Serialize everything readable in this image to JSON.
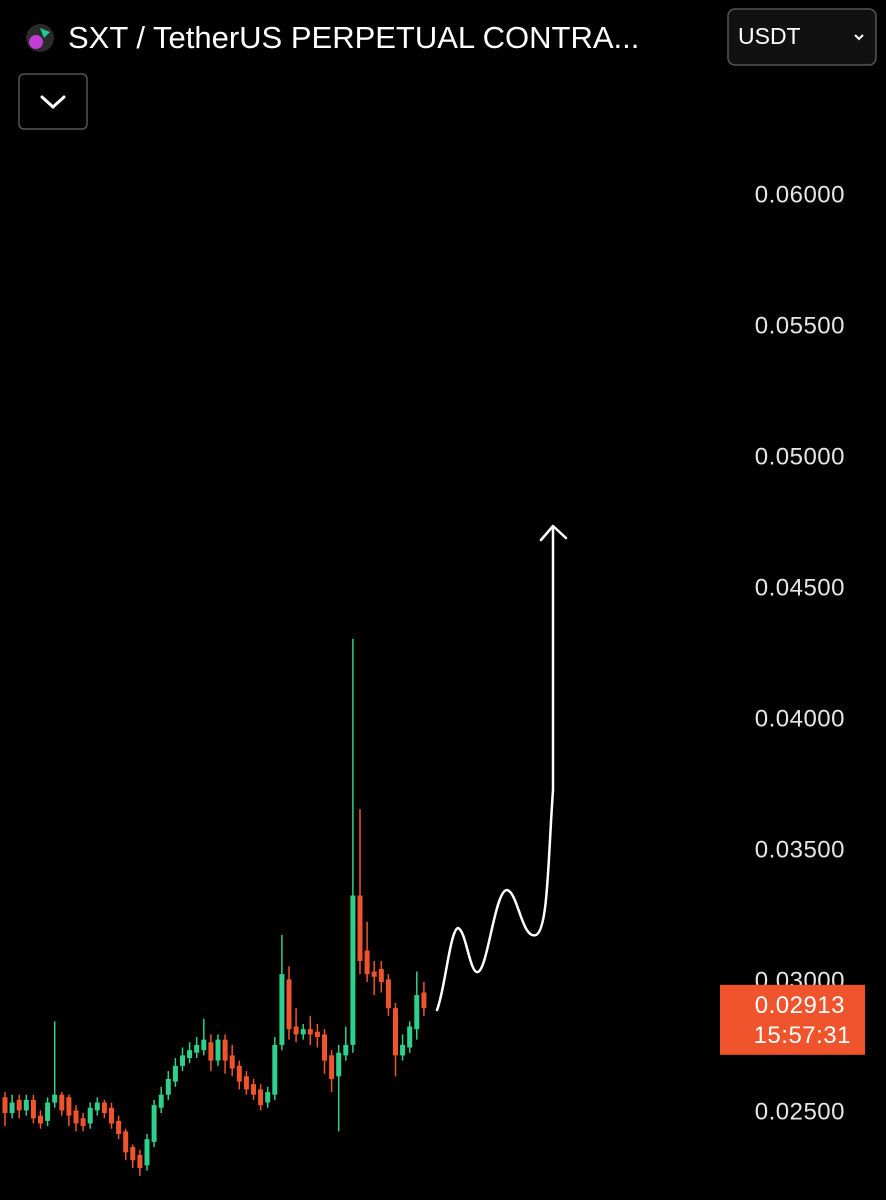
{
  "chart_data": {
    "type": "candlestick",
    "title": "SXT / TetherUS PERPETUAL CONTRA...",
    "currency": "USDT",
    "up_color": "#2ed08b",
    "down_color": "#f0542d",
    "ylim": [
      0.02168,
      0.06748
    ],
    "yticks": [
      {
        "value": 0.025,
        "label": "0.02500"
      },
      {
        "value": 0.03,
        "label": "0.03000"
      },
      {
        "value": 0.035,
        "label": "0.03500"
      },
      {
        "value": 0.04,
        "label": "0.04000"
      },
      {
        "value": 0.045,
        "label": "0.04500"
      },
      {
        "value": 0.05,
        "label": "0.05000"
      },
      {
        "value": 0.055,
        "label": "0.05500"
      },
      {
        "value": 0.06,
        "label": "0.06000"
      }
    ],
    "last_price": 0.02913,
    "countdown": "15:57:31",
    "open": [
      0.0256,
      0.025,
      0.0255,
      0.0251,
      0.0255,
      0.0249,
      0.0247,
      0.0254,
      0.0257,
      0.0256,
      0.0251,
      0.0248,
      0.0246,
      0.0251,
      0.0254,
      0.0252,
      0.0247,
      0.0243,
      0.0237,
      0.0234,
      0.023,
      0.0239,
      0.0252,
      0.0257,
      0.0262,
      0.0268,
      0.0271,
      0.0273,
      0.0274,
      0.0277,
      0.027,
      0.0278,
      0.0272,
      0.0268,
      0.0264,
      0.0261,
      0.0259,
      0.0254,
      0.0257,
      0.0276,
      0.0301,
      0.0283,
      0.028,
      0.0282,
      0.0281,
      0.028,
      0.0272,
      0.0264,
      0.0272,
      0.0276,
      0.0333,
      0.0312,
      0.0304,
      0.0305,
      0.0301,
      0.029,
      0.0272,
      0.0275,
      0.0282,
      0.0296
    ],
    "high": [
      0.0258,
      0.0257,
      0.0257,
      0.0257,
      0.0257,
      0.0251,
      0.0256,
      0.0285,
      0.0258,
      0.0257,
      0.0253,
      0.025,
      0.0254,
      0.0256,
      0.0255,
      0.0254,
      0.0249,
      0.0244,
      0.0238,
      0.0236,
      0.0242,
      0.0255,
      0.026,
      0.0266,
      0.0271,
      0.0275,
      0.0277,
      0.0279,
      0.0286,
      0.028,
      0.028,
      0.028,
      0.0276,
      0.027,
      0.0266,
      0.0263,
      0.0261,
      0.026,
      0.0279,
      0.0318,
      0.0306,
      0.029,
      0.0284,
      0.0287,
      0.0284,
      0.0282,
      0.0274,
      0.0276,
      0.0283,
      0.0431,
      0.0366,
      0.0323,
      0.0308,
      0.0308,
      0.0303,
      0.0292,
      0.028,
      0.0285,
      0.0304,
      0.03
    ],
    "low": [
      0.0245,
      0.0248,
      0.0248,
      0.0249,
      0.0246,
      0.0244,
      0.0245,
      0.0252,
      0.0249,
      0.0245,
      0.0243,
      0.0243,
      0.0244,
      0.0249,
      0.0248,
      0.0244,
      0.024,
      0.0232,
      0.0229,
      0.0226,
      0.0228,
      0.0237,
      0.025,
      0.0255,
      0.026,
      0.0266,
      0.0269,
      0.0271,
      0.0272,
      0.0266,
      0.0268,
      0.0265,
      0.0264,
      0.0259,
      0.0257,
      0.0255,
      0.0251,
      0.0252,
      0.0255,
      0.0274,
      0.0278,
      0.0277,
      0.0278,
      0.0276,
      0.0275,
      0.0265,
      0.0258,
      0.0243,
      0.027,
      0.0273,
      0.0303,
      0.03,
      0.0295,
      0.0296,
      0.0287,
      0.0264,
      0.027,
      0.0273,
      0.0278,
      0.0287
    ],
    "close": [
      0.025,
      0.0254,
      0.0251,
      0.0255,
      0.0248,
      0.0246,
      0.0254,
      0.0257,
      0.0251,
      0.0249,
      0.0246,
      0.0245,
      0.0252,
      0.0254,
      0.025,
      0.0246,
      0.0242,
      0.0235,
      0.0232,
      0.0229,
      0.024,
      0.0253,
      0.0257,
      0.0263,
      0.0268,
      0.0272,
      0.0274,
      0.0276,
      0.0278,
      0.027,
      0.0278,
      0.027,
      0.0267,
      0.0262,
      0.0259,
      0.0257,
      0.0253,
      0.0258,
      0.0276,
      0.0303,
      0.0282,
      0.028,
      0.0282,
      0.028,
      0.0279,
      0.027,
      0.0263,
      0.0273,
      0.0276,
      0.0333,
      0.0308,
      0.0303,
      0.0302,
      0.03,
      0.029,
      0.0272,
      0.0276,
      0.0283,
      0.0295,
      0.029
    ]
  }
}
